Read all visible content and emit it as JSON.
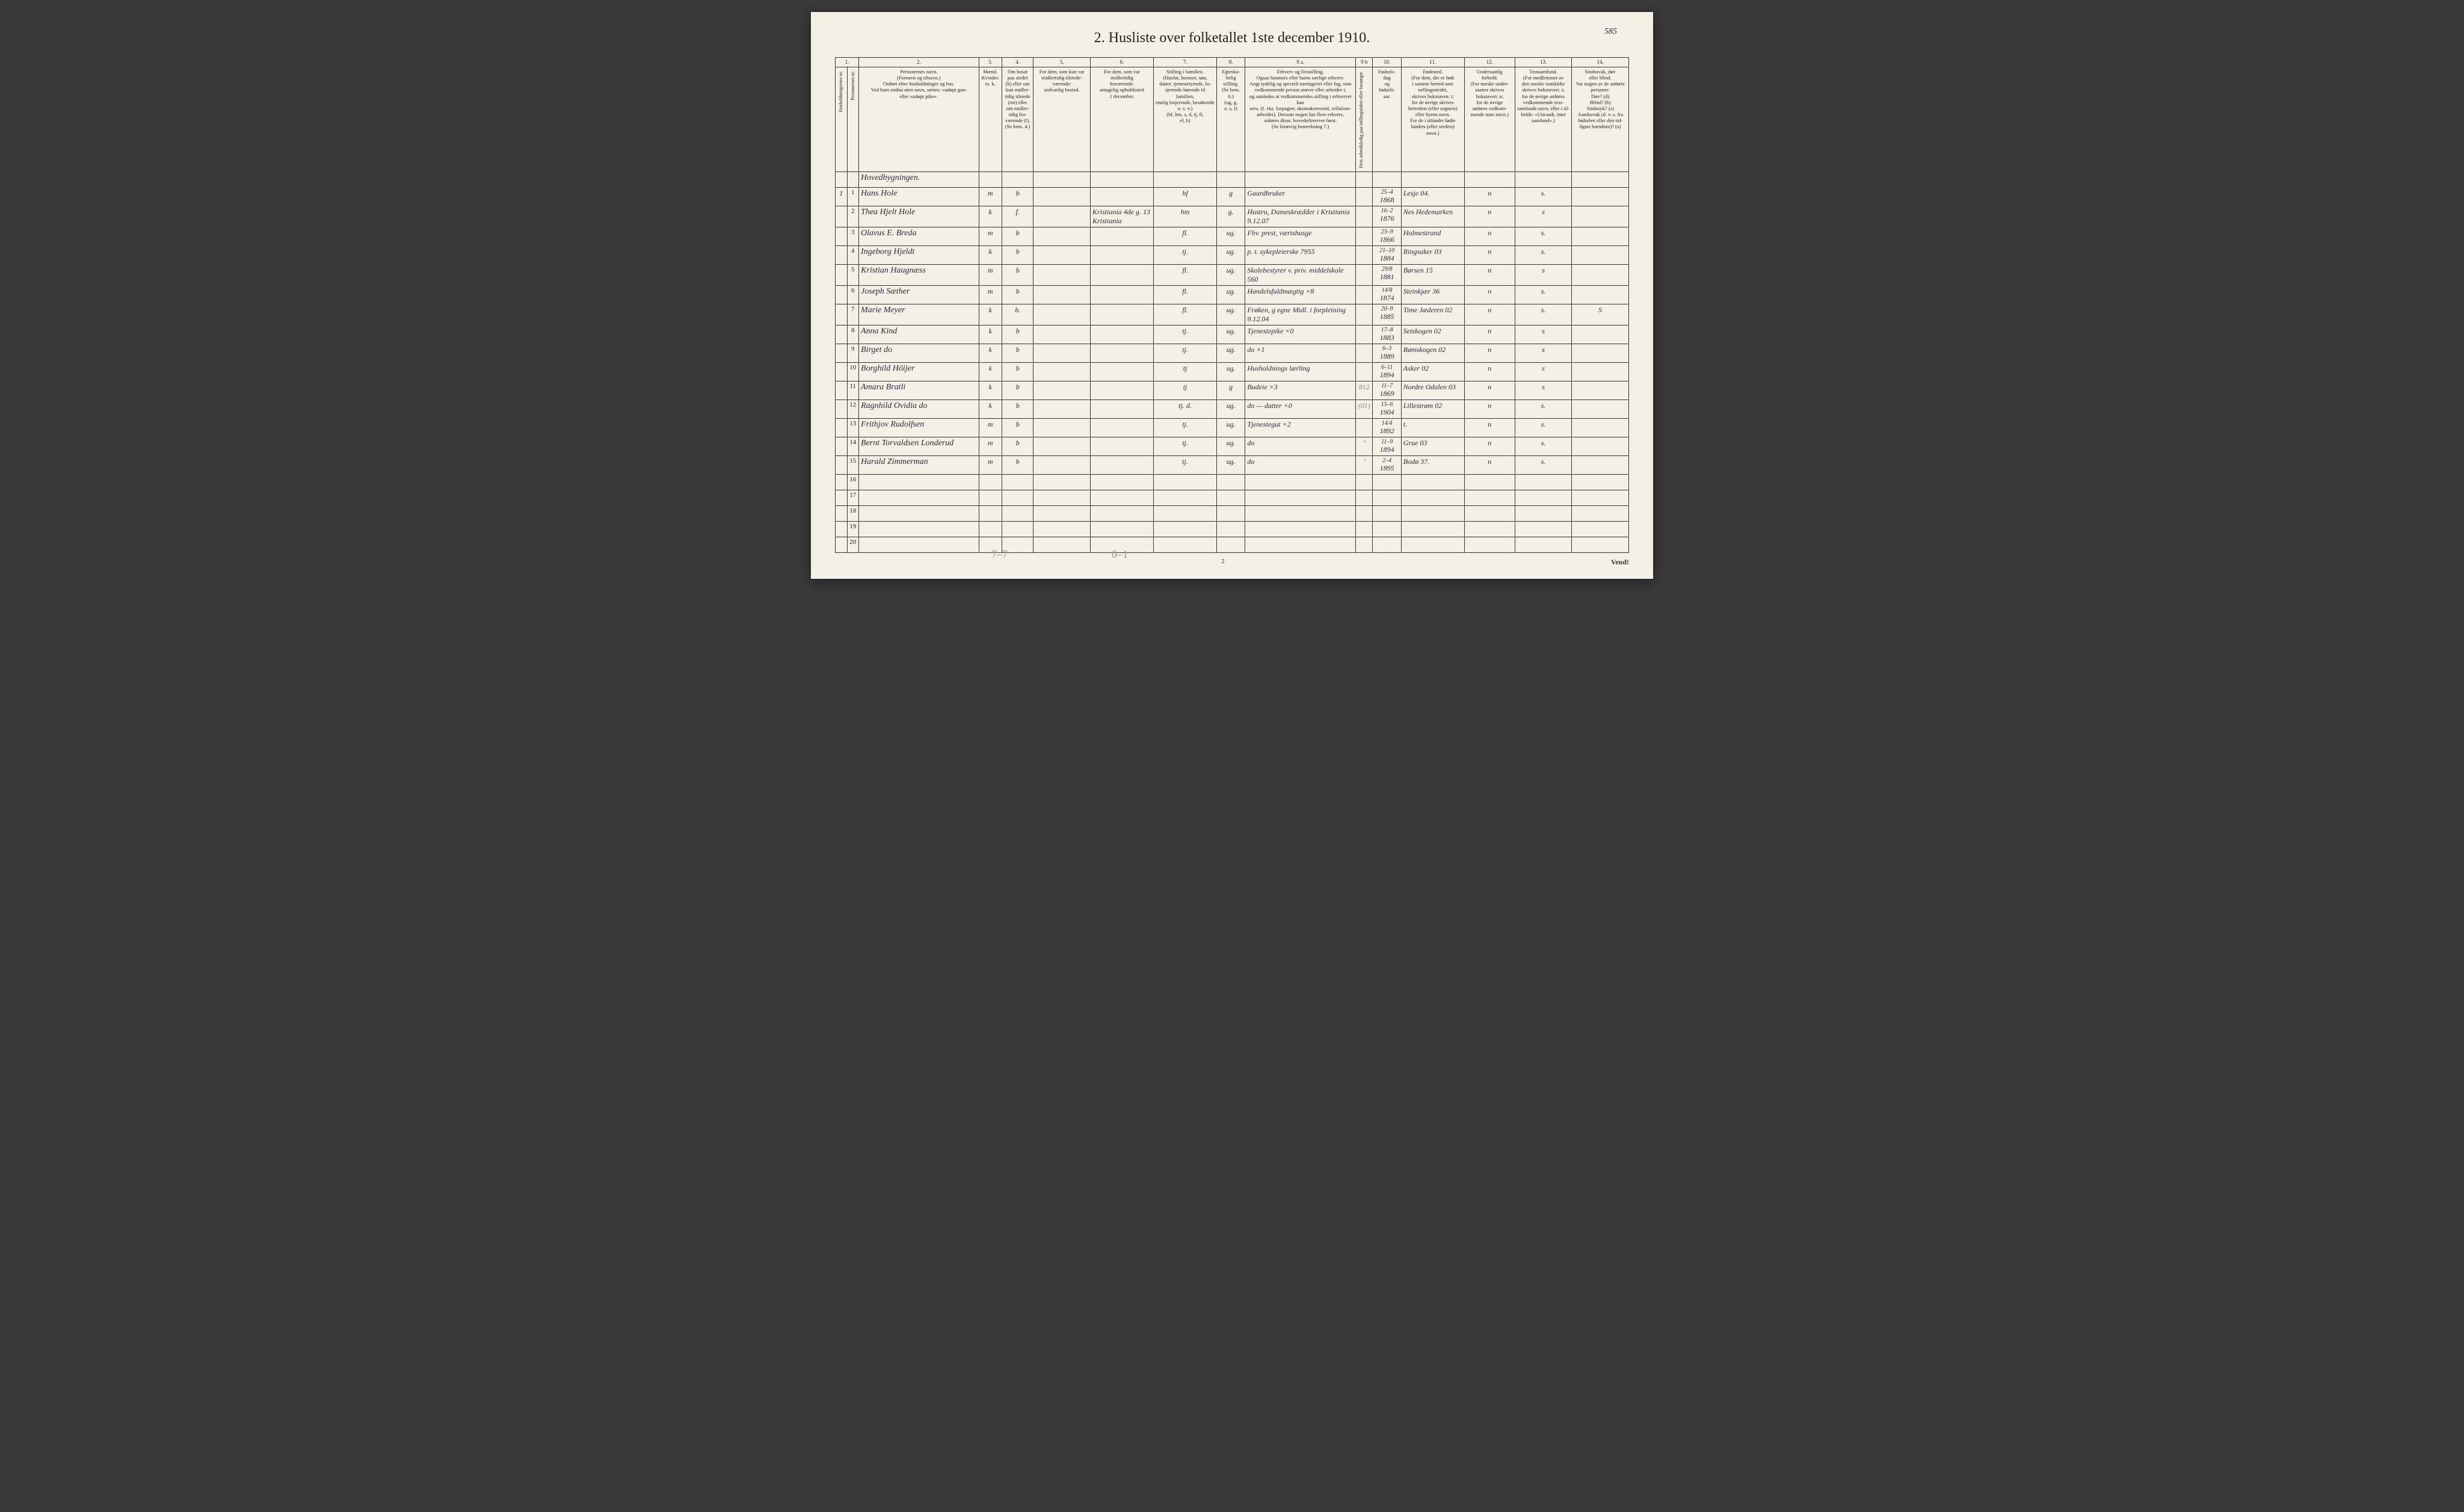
{
  "document": {
    "title": "2.  Husliste over folketallet 1ste december 1910.",
    "page_annotation": "585",
    "building_header": "Hovedbygningen.",
    "footer_page": "2",
    "vend": "Vend!",
    "pencil_left": "7–7",
    "pencil_mid": "0–1"
  },
  "columns": {
    "1": "1.",
    "2": "2.",
    "3": "3.",
    "4": "4.",
    "5": "5.",
    "6": "6.",
    "7": "7.",
    "8": "8.",
    "9a": "9 a.",
    "9b": "9 b",
    "10": "10.",
    "11": "11.",
    "12": "12.",
    "13": "13.",
    "14": "14.",
    "h1_vert": "Husholdningernes nr.",
    "h1b_vert": "Personernes nr.",
    "h2": "Personernes navn.\n(Fornavn og tilnavn.)\nOrdnet efter husholdninger og hus.\nVed barn endnu uten navn, sættes: «udøpt gut»\neller «udøpt pike».",
    "h3": "Kjøn.",
    "h3_sub": "Mænd.\nKvinder.\nm. k.",
    "h4": "Om bosat\npaa stedet\n(b) eller om\nkun midler-\ntidig tilstede\n(mt) eller\nom midler-\ntidig fra-\nværende (f).\n(Se bem. 4.)",
    "h5": "For dem, som kun var\nmidlertidig tilstede-\nværende:\nsedvanlig bosted.",
    "h6": "For dem, som var\nmidlertidig\nfraværende:\nantagelig opholdssted\n1 december.",
    "h7": "Stilling i familien.\n(Husfar, husmor, søn,\ndatter, tjenestetyende, lo-\nsjerende hørende til familien,\nenslig losjerende, besøkende\no. s. v.)\n(hf, hm, s, d, tj, fl,\nel, b)",
    "h8": "Egteska-\nbelig\nstilling.\n(Se bem. 6.)\n(ug, g,\ne, s, f)",
    "h9a": "Erhverv og livsstilling.\nOgsaa husmors eller barns særlige erhverv.\nAngi tydelig og specielt næringsvei eller fag, som\nvedkommende person utøver eller arbeider i,\nog samledes at vedkommendes stilling i erhvervet kan\nsees, (f. eks. forpagter, skomakersvend, cellulose-\narbeider). Dersom nogen har flere erhverv,\nanføres disse, hovederhvervet først.\n(Se forøvrig bemerkning 7.)",
    "h9b_vert": "Hvis arbeidsledig\npaa tællingstiden\neller forsørget.",
    "h10": "Fødsels-\ndag\nog\nfødsels-\naar.",
    "h11": "Fødested.\n(For dem, der er født\ni samme herred som\ntællingsstedet,\nskrives bokstaven: t;\nfor de øvrige skrives\nherredets (eller sognets)\neller byens navn.\nFor de i utlandet fødte\nlandets (eller stedets)\nnavn.)",
    "h12": "Undersaatlig\nforhold.\n(For norske under-\nsaatter skrives\nbokstaven: n;\nfor de øvrige\nanføres vedkom-\nmende stats navn.)",
    "h13": "Trossamfund.\n(For medlemmer av\nden norske statskirke\nskrives bokstaven: s;\nfor de øvrige anføres\nvedkommende tros-\nsamfunds navn, eller i til-\nfælde: «Uttraadt, intet\nsamfund».)",
    "h14": "Sindssvak, døv\neller blind.\nVar nogen av de anførte\npersoner:\nDøv?       (d)\nBlind?     (b)\nSindssyk?  (s)\nAandssvak (d. v. s. fra\nfødselen eller den tid-\nligste barndom)? (a)"
  },
  "rows": [
    {
      "hh": "1",
      "nr": "1",
      "name": "Hans Hole",
      "mk": "m",
      "bosat": "b",
      "col5": "",
      "col6": "",
      "col7": "hf",
      "col8": "g",
      "col9a": "Gaardbruker",
      "col9b": "",
      "col10a": "25–4",
      "col10b": "1868",
      "col11": "Lesje 04.",
      "col12": "n",
      "col13": "s.",
      "col14": ""
    },
    {
      "hh": "",
      "nr": "2",
      "name": "Thea Hjelt Hole",
      "mk": "k",
      "bosat": "f.",
      "col5": "",
      "col6": "Kristiania 4de g. 13\nKristiania",
      "col7": "hm",
      "col8": "g.",
      "col9a": "Hustru, Dameskrædder i Kristiania  9.12.07",
      "col9b": "",
      "col10a": "16–2",
      "col10b": "1876",
      "col11": "Nes Hedemarken",
      "col12": "n",
      "col13": "s",
      "col14": ""
    },
    {
      "hh": "",
      "nr": "3",
      "name": "Olavus E. Breda",
      "mk": "m",
      "bosat": "b",
      "col5": "",
      "col6": "",
      "col7": "fl.",
      "col8": "ug.",
      "col9a": "Fhv. prest, værtshusge",
      "col9b": "",
      "col10a": "23–9",
      "col10b": "1866",
      "col11": "Holmestrand",
      "col12": "n",
      "col13": "s.",
      "col14": ""
    },
    {
      "hh": "",
      "nr": "4",
      "name": "Ingeborg Hjeldt",
      "mk": "k",
      "bosat": "b",
      "col5": "",
      "col6": "",
      "col7": "tj.",
      "col8": "ug.",
      "col9a": "p. t. sykepleierske 7955",
      "col9b": "",
      "col10a": "21–10",
      "col10b": "1884",
      "col11": "Ringsaker 03",
      "col12": "n",
      "col13": "s.",
      "col14": ""
    },
    {
      "hh": "",
      "nr": "5",
      "name": "Kristian Haugnæss",
      "mk": "m",
      "bosat": "b",
      "col5": "",
      "col6": "",
      "col7": "fl.",
      "col8": "ug.",
      "col9a": "Skolebestyrer v. priv. middelskole 560",
      "col9b": "",
      "col10a": "29/8",
      "col10b": "1881",
      "col11": "Børsen 15",
      "col12": "n",
      "col13": "s",
      "col14": ""
    },
    {
      "hh": "",
      "nr": "6",
      "name": "Joseph Sæther",
      "mk": "m",
      "bosat": "b",
      "col5": "",
      "col6": "",
      "col7": "fl.",
      "col8": "ug.",
      "col9a": "Handelsfuldmægtig ×8",
      "col9b": "",
      "col10a": "14/8",
      "col10b": "1874",
      "col11": "Steinkjær 36",
      "col12": "n",
      "col13": "s.",
      "col14": ""
    },
    {
      "hh": "",
      "nr": "7",
      "name": "Marie Meyer",
      "mk": "k",
      "bosat": "b.",
      "col5": "",
      "col6": "",
      "col7": "fl.",
      "col8": "ug.",
      "col9a": "Frøken, g egne Midl. i forpleining 9.12.04",
      "col9b": "",
      "col10a": "20–9",
      "col10b": "1885",
      "col11": "Time Jæderen 02",
      "col12": "n",
      "col13": "s.",
      "col14": "S"
    },
    {
      "hh": "",
      "nr": "8",
      "name": "Anna Kind",
      "mk": "k",
      "bosat": "b",
      "col5": "",
      "col6": "",
      "col7": "tj.",
      "col8": "ug.",
      "col9a": "Tjenestepike ×0",
      "col9b": "",
      "col10a": "17–8",
      "col10b": "1883",
      "col11": "Setskogen 02",
      "col12": "n",
      "col13": "s",
      "col14": ""
    },
    {
      "hh": "",
      "nr": "9",
      "name": "Birget do",
      "mk": "k",
      "bosat": "b",
      "col5": "",
      "col6": "",
      "col7": "tj.",
      "col8": "ug.",
      "col9a": "do ×1",
      "col9b": "",
      "col10a": "6–3",
      "col10b": "1889",
      "col11": "Rømskogen 02",
      "col12": "n",
      "col13": "s",
      "col14": ""
    },
    {
      "hh": "",
      "nr": "10",
      "name": "Borghild Höijer",
      "mk": "k",
      "bosat": "b",
      "col5": "",
      "col6": "",
      "col7": "tj",
      "col8": "ug.",
      "col9a": "Husholdnings lærling",
      "col9b": "",
      "col10a": "6–11",
      "col10b": "1894",
      "col11": "Asker 02",
      "col12": "n",
      "col13": "s",
      "col14": ""
    },
    {
      "hh": "",
      "nr": "11",
      "name": "Amara Bratli",
      "mk": "k",
      "bosat": "b",
      "col5": "",
      "col6": "",
      "col7": "tj",
      "col8": "g",
      "col9a": "Budeie ×3",
      "col9b": "812",
      "col10a": "11–7",
      "col10b": "1869",
      "col11": "Nordre Odalen 03",
      "col12": "n",
      "col13": "s",
      "col14": ""
    },
    {
      "hh": "",
      "nr": "12",
      "name": "Ragnhild Ovidia do",
      "mk": "k",
      "bosat": "b",
      "col5": "",
      "col6": "",
      "col7": "tj. d.",
      "col8": "ug.",
      "col9a": "do — datter ×0",
      "col9b": "(01)",
      "col10a": "15–6",
      "col10b": "1904",
      "col11": "Lillestrøm 02",
      "col12": "n",
      "col13": "s.",
      "col14": ""
    },
    {
      "hh": "",
      "nr": "13",
      "name": "Frithjov Rudolfsen",
      "mk": "m",
      "bosat": "b",
      "col5": "",
      "col6": "",
      "col7": "tj.",
      "col8": "ug.",
      "col9a": "Tjenestegut ×2",
      "col9b": "",
      "col10a": "14/4",
      "col10b": "1892",
      "col11": "t.",
      "col12": "n",
      "col13": "s.",
      "col14": ""
    },
    {
      "hh": "",
      "nr": "14",
      "name": "Bernt Torvaldsen Londerud",
      "mk": "m",
      "bosat": "b",
      "col5": "",
      "col6": "",
      "col7": "tj.",
      "col8": "ug.",
      "col9a": "do",
      "col9b": "\"",
      "col10a": "11–9",
      "col10b": "1894",
      "col11": "Grue 03",
      "col12": "n",
      "col13": "s.",
      "col14": ""
    },
    {
      "hh": "",
      "nr": "15",
      "name": "Harald Zimmerman",
      "mk": "m",
      "bosat": "b",
      "col5": "",
      "col6": "",
      "col7": "tj.",
      "col8": "ug.",
      "col9a": "do",
      "col9b": "\"",
      "col10a": "2–4",
      "col10b": "1895",
      "col11": "Bodø 37.",
      "col12": "n",
      "col13": "s.",
      "col14": ""
    }
  ],
  "empty_rows": [
    "16",
    "17",
    "18",
    "19",
    "20"
  ]
}
